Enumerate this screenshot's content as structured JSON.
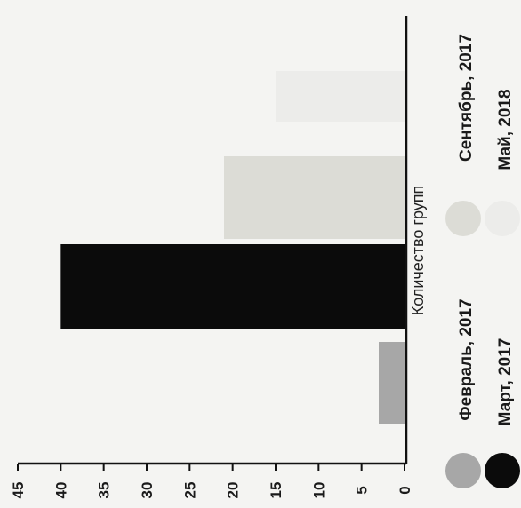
{
  "chart_data": {
    "type": "bar",
    "orientation": "horizontal",
    "xlabel": "Количество групп",
    "xlim": [
      0,
      45
    ],
    "xticks": [
      0,
      5,
      10,
      15,
      20,
      25,
      30,
      35,
      40,
      45
    ],
    "categories": [
      "Февраль, 2017",
      "Март, 2017",
      "Сентябрь, 2017",
      "Май, 2018"
    ],
    "values": [
      3,
      40,
      21,
      15
    ],
    "colors": [
      "#a7a7a7",
      "#0b0b0b",
      "#dcdcd6",
      "#ececea"
    ],
    "legend_position": "bottom",
    "grid": false
  }
}
